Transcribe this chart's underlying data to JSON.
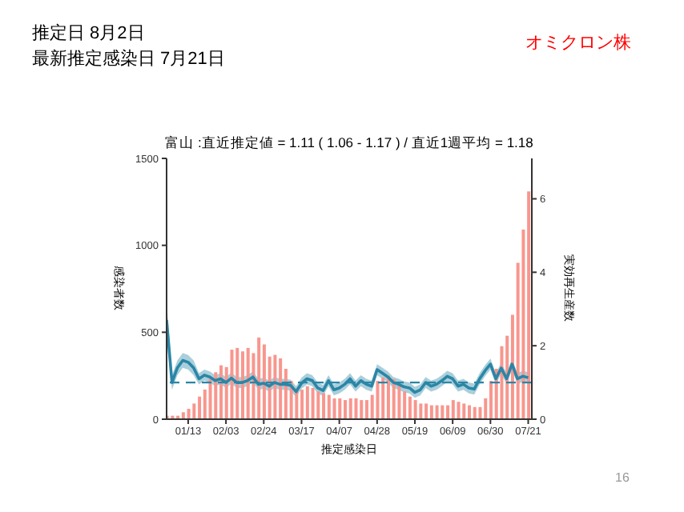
{
  "chart_data": {
    "type": "bar",
    "title": "富山 :直近推定値 = 1.11 ( 1.06 - 1.17 ) / 直近1週平均 = 1.18",
    "xlabel": "推定感染日",
    "ylabel": "感染者数",
    "y2label": "実効再生産数",
    "annotations": [
      "推定日  8月2日",
      "最新推定感染日  7月21日",
      "オミクロン株",
      "16"
    ],
    "x": [
      "--01-01",
      "--01-04",
      "--01-07",
      "--01-10",
      "--01-13",
      "--01-16",
      "--01-19",
      "--01-22",
      "--01-25",
      "--01-28",
      "--01-31",
      "--02-03",
      "--02-06",
      "--02-09",
      "--02-12",
      "--02-15",
      "--02-18",
      "--02-21",
      "--02-24",
      "--02-27",
      "--03-02",
      "--03-05",
      "--03-08",
      "--03-11",
      "--03-14",
      "--03-17",
      "--03-20",
      "--03-23",
      "--03-26",
      "--03-29",
      "--04-01",
      "--04-04",
      "--04-07",
      "--04-10",
      "--04-13",
      "--04-16",
      "--04-19",
      "--04-22",
      "--04-25",
      "--04-28",
      "--05-01",
      "--05-04",
      "--05-07",
      "--05-10",
      "--05-13",
      "--05-16",
      "--05-19",
      "--05-22",
      "--05-25",
      "--05-28",
      "--05-31",
      "--06-03",
      "--06-06",
      "--06-09",
      "--06-12",
      "--06-15",
      "--06-18",
      "--06-21",
      "--06-24",
      "--06-27",
      "--06-30",
      "--07-03",
      "--07-06",
      "--07-09",
      "--07-12",
      "--07-15",
      "--07-18",
      "--07-21"
    ],
    "series": [
      {
        "color": "#f8968e",
        "values": [
          20,
          20,
          20,
          40,
          60,
          90,
          130,
          170,
          230,
          270,
          310,
          300,
          400,
          410,
          390,
          410,
          380,
          470,
          430,
          360,
          370,
          350,
          290,
          220,
          180,
          170,
          190,
          180,
          160,
          150,
          140,
          120,
          120,
          110,
          120,
          120,
          110,
          110,
          140,
          220,
          240,
          250,
          230,
          200,
          160,
          130,
          110,
          90,
          90,
          80,
          80,
          80,
          80,
          110,
          100,
          90,
          80,
          70,
          70,
          120,
          220,
          290,
          420,
          480,
          600,
          900,
          1090,
          1310
        ]
      },
      {
        "type": "line",
        "axis": "y2",
        "color": "#2a86a6",
        "values": [
          2.7,
          1.0,
          1.4,
          1.6,
          1.55,
          1.4,
          1.1,
          1.2,
          1.15,
          1.05,
          1.1,
          1.0,
          1.12,
          1.0,
          1.0,
          1.05,
          1.15,
          0.95,
          0.98,
          0.9,
          1.0,
          0.95,
          0.95,
          0.92,
          0.75,
          0.98,
          1.1,
          1.05,
          0.85,
          0.78,
          1.05,
          0.8,
          0.85,
          0.95,
          1.1,
          0.9,
          1.05,
          0.95,
          0.9,
          1.35,
          1.25,
          1.15,
          1.0,
          0.95,
          0.88,
          0.85,
          0.73,
          0.8,
          1.0,
          0.9,
          0.95,
          1.05,
          1.17,
          1.1,
          0.9,
          0.95,
          0.85,
          0.82,
          1.1,
          1.32,
          1.5,
          1.1,
          1.39,
          1.1,
          1.5,
          1.1,
          1.17,
          1.13
        ],
        "lower": [
          2.2,
          0.8,
          1.2,
          1.4,
          1.35,
          1.2,
          0.95,
          1.05,
          1.0,
          0.9,
          0.95,
          0.85,
          0.97,
          0.85,
          0.85,
          0.9,
          1.0,
          0.8,
          0.83,
          0.75,
          0.85,
          0.8,
          0.8,
          0.77,
          0.6,
          0.83,
          0.95,
          0.9,
          0.7,
          0.63,
          0.9,
          0.65,
          0.7,
          0.8,
          0.95,
          0.75,
          0.9,
          0.8,
          0.75,
          1.2,
          1.1,
          1.0,
          0.85,
          0.8,
          0.73,
          0.7,
          0.58,
          0.65,
          0.85,
          0.75,
          0.8,
          0.9,
          1.02,
          0.95,
          0.75,
          0.8,
          0.7,
          0.67,
          0.95,
          1.17,
          1.35,
          0.95,
          1.24,
          0.95,
          1.35,
          0.95,
          1.02,
          0.98
        ],
        "upper": [
          3.2,
          1.2,
          1.6,
          1.8,
          1.75,
          1.6,
          1.25,
          1.35,
          1.3,
          1.2,
          1.25,
          1.15,
          1.27,
          1.15,
          1.15,
          1.2,
          1.3,
          1.1,
          1.13,
          1.05,
          1.15,
          1.1,
          1.1,
          1.07,
          0.9,
          1.13,
          1.25,
          1.2,
          1.0,
          0.93,
          1.2,
          0.95,
          1.0,
          1.1,
          1.25,
          1.05,
          1.2,
          1.1,
          1.05,
          1.5,
          1.4,
          1.3,
          1.15,
          1.1,
          1.03,
          1.0,
          0.88,
          0.95,
          1.15,
          1.05,
          1.1,
          1.2,
          1.32,
          1.25,
          1.05,
          1.1,
          1.0,
          0.97,
          1.25,
          1.47,
          1.65,
          1.25,
          1.54,
          1.25,
          1.65,
          1.25,
          1.32,
          1.28
        ]
      }
    ],
    "xlim": [
      "--01-01",
      "--07-23"
    ],
    "xticks": [
      {
        "value": "--01-13",
        "label": "01/13"
      },
      {
        "value": "--02-03",
        "label": "02/03"
      },
      {
        "value": "--02-24",
        "label": "02/24"
      },
      {
        "value": "--03-17",
        "label": "03/17"
      },
      {
        "value": "--04-07",
        "label": "04/07"
      },
      {
        "value": "--04-28",
        "label": "04/28"
      },
      {
        "value": "--05-19",
        "label": "05/19"
      },
      {
        "value": "--06-09",
        "label": "06/09"
      },
      {
        "value": "--06-30",
        "label": "06/30"
      },
      {
        "value": "--07-21",
        "label": "07/21"
      }
    ],
    "ylim": [
      0,
      1500
    ],
    "yticks": [
      0,
      500,
      1000,
      1500
    ],
    "y2lim": [
      0,
      7.1
    ],
    "y2ticks": [
      0,
      2,
      4,
      6
    ],
    "ref_lines": [
      {
        "axis": "y2",
        "value": 1,
        "color": "#2a86a6",
        "line_style": "dashed"
      }
    ],
    "grid": false,
    "legend": false
  }
}
